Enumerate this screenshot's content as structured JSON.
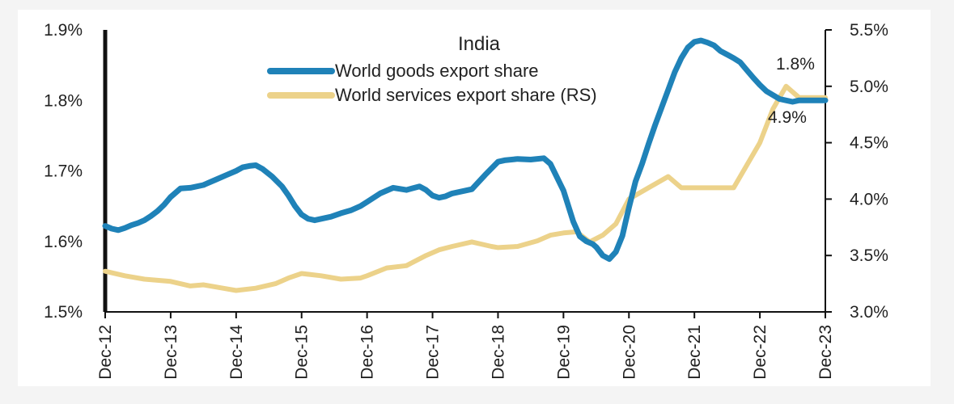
{
  "chart_data": {
    "type": "line",
    "title": "India",
    "colors": {
      "goods": "#1f82b8",
      "services": "#ecd28a",
      "axis": "#111111"
    },
    "x_labels": [
      "Dec-12",
      "Dec-13",
      "Dec-14",
      "Dec-15",
      "Dec-16",
      "Dec-17",
      "Dec-18",
      "Dec-19",
      "Dec-20",
      "Dec-21",
      "Dec-22",
      "Dec-23"
    ],
    "y_left": {
      "min": 1.5,
      "max": 1.9,
      "ticks": [
        "1.9%",
        "1.8%",
        "1.7%",
        "1.6%",
        "1.5%"
      ]
    },
    "y_right": {
      "min": 3.0,
      "max": 5.5,
      "ticks": [
        "5.5%",
        "5.0%",
        "4.5%",
        "4.0%",
        "3.5%",
        "3.0%"
      ]
    },
    "legend": [
      {
        "name": "World goods export share",
        "color": "#1f82b8"
      },
      {
        "name": "World services export share (RS)",
        "color": "#ecd28a"
      }
    ],
    "series": [
      {
        "name": "World goods export share",
        "axis": "left",
        "x": [
          0,
          0.1,
          0.2,
          0.3,
          0.4,
          0.5,
          0.6,
          0.7,
          0.8,
          0.9,
          1.0,
          1.15,
          1.3,
          1.5,
          1.7,
          1.85,
          2.0,
          2.1,
          2.2,
          2.3,
          2.4,
          2.55,
          2.7,
          2.8,
          2.9,
          3.0,
          3.1,
          3.2,
          3.3,
          3.45,
          3.6,
          3.75,
          3.9,
          4.0,
          4.2,
          4.4,
          4.6,
          4.8,
          4.9,
          5.0,
          5.1,
          5.2,
          5.3,
          5.4,
          5.6,
          5.8,
          6.0,
          6.1,
          6.3,
          6.5,
          6.7,
          6.8,
          7.0,
          7.15,
          7.25,
          7.35,
          7.45,
          7.5,
          7.6,
          7.7,
          7.8,
          7.9,
          7.95,
          8.0,
          8.1,
          8.2,
          8.3,
          8.4,
          8.5,
          8.6,
          8.7,
          8.8,
          8.9,
          9.0,
          9.1,
          9.2,
          9.3,
          9.4,
          9.5,
          9.6,
          9.7,
          9.8,
          9.9,
          10.0,
          10.1,
          10.3,
          10.5,
          10.6,
          10.75,
          10.9,
          11.0
        ],
        "y": [
          1.622,
          1.618,
          1.616,
          1.619,
          1.623,
          1.626,
          1.63,
          1.636,
          1.643,
          1.652,
          1.663,
          1.675,
          1.676,
          1.68,
          1.688,
          1.694,
          1.7,
          1.705,
          1.707,
          1.708,
          1.703,
          1.692,
          1.678,
          1.665,
          1.65,
          1.638,
          1.632,
          1.63,
          1.632,
          1.635,
          1.64,
          1.644,
          1.65,
          1.656,
          1.668,
          1.676,
          1.673,
          1.678,
          1.673,
          1.665,
          1.662,
          1.664,
          1.668,
          1.67,
          1.674,
          1.694,
          1.713,
          1.715,
          1.717,
          1.716,
          1.718,
          1.71,
          1.672,
          1.628,
          1.607,
          1.6,
          1.596,
          1.592,
          1.58,
          1.575,
          1.585,
          1.608,
          1.628,
          1.648,
          1.685,
          1.71,
          1.738,
          1.765,
          1.79,
          1.815,
          1.84,
          1.86,
          1.875,
          1.883,
          1.885,
          1.882,
          1.878,
          1.87,
          1.865,
          1.86,
          1.854,
          1.843,
          1.832,
          1.822,
          1.813,
          1.802,
          1.798,
          1.8,
          1.8,
          1.8,
          1.8
        ]
      },
      {
        "name": "World services export share (RS)",
        "axis": "right",
        "x": [
          0,
          0.3,
          0.6,
          1.0,
          1.3,
          1.5,
          1.8,
          2.0,
          2.3,
          2.6,
          2.8,
          3.0,
          3.3,
          3.6,
          3.9,
          4.0,
          4.3,
          4.6,
          4.9,
          5.1,
          5.3,
          5.6,
          5.9,
          6.0,
          6.3,
          6.6,
          6.8,
          7.0,
          7.2,
          7.4,
          7.6,
          7.8,
          8.0,
          8.3,
          8.6,
          8.8,
          9.0,
          9.3,
          9.6,
          9.8,
          10.0,
          10.2,
          10.4,
          10.6,
          10.8,
          11.0
        ],
        "y": [
          3.36,
          3.32,
          3.29,
          3.27,
          3.23,
          3.24,
          3.21,
          3.19,
          3.21,
          3.25,
          3.3,
          3.34,
          3.32,
          3.29,
          3.3,
          3.32,
          3.39,
          3.41,
          3.5,
          3.55,
          3.58,
          3.62,
          3.58,
          3.57,
          3.58,
          3.63,
          3.68,
          3.7,
          3.71,
          3.62,
          3.68,
          3.78,
          4.0,
          4.1,
          4.2,
          4.1,
          4.1,
          4.1,
          4.1,
          4.3,
          4.5,
          4.8,
          5.0,
          4.9,
          4.9,
          4.9
        ]
      }
    ],
    "annotations": [
      {
        "text": "1.8%",
        "series": "World goods export share"
      },
      {
        "text": "4.9%",
        "series": "World services export share (RS)"
      }
    ]
  }
}
